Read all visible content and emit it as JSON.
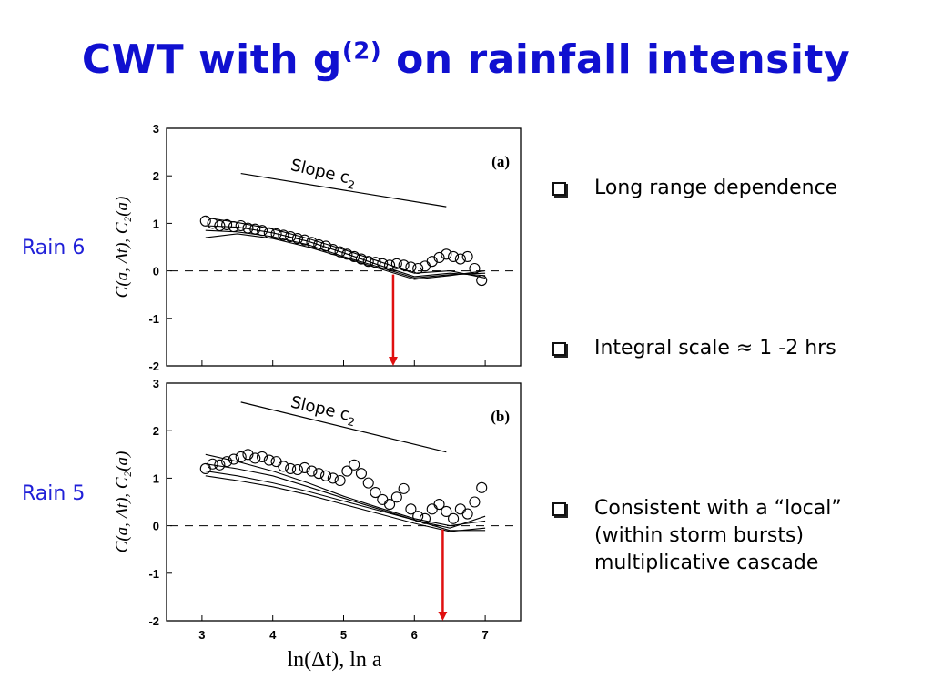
{
  "title": {
    "main": "CWT with g",
    "sup": "(2)",
    "rest": " on rainfall intensity"
  },
  "row_labels": [
    "Rain 6",
    "Rain 5"
  ],
  "bullets": [
    {
      "lines": [
        "Long range dependence"
      ]
    },
    {
      "lines": [
        "Integral scale  ≈ 1 -2 hrs"
      ]
    },
    {
      "lines": [
        "Consistent with a “local”",
        "(within storm bursts)",
        "multiplicative cascade"
      ]
    }
  ],
  "chart_data": [
    {
      "type": "scatter",
      "panel_label": "(a)",
      "xlabel": "",
      "ylabel": "C(a, Δt), C₂(a)",
      "xlim": [
        2.5,
        7.5
      ],
      "ylim": [
        -2,
        3
      ],
      "yticks": [
        "3",
        "2",
        "1",
        "0",
        "-1",
        "-2"
      ],
      "slope_label": "Slope c₂",
      "slope_line": {
        "x": [
          3.55,
          6.45
        ],
        "y": [
          2.05,
          1.35
        ]
      },
      "zero_line": 0,
      "integral_scale_x": 5.7,
      "circles": {
        "x": [
          3.05,
          3.15,
          3.25,
          3.35,
          3.45,
          3.55,
          3.65,
          3.75,
          3.85,
          3.95,
          4.05,
          4.15,
          4.25,
          4.35,
          4.45,
          4.55,
          4.65,
          4.75,
          4.85,
          4.95,
          5.05,
          5.15,
          5.25,
          5.35,
          5.45,
          5.55,
          5.65,
          5.75,
          5.85,
          5.95,
          6.05,
          6.15,
          6.25,
          6.35,
          6.45,
          6.55,
          6.65,
          6.75,
          6.85,
          6.95
        ],
        "y": [
          1.05,
          1.0,
          0.95,
          0.97,
          0.93,
          0.95,
          0.9,
          0.88,
          0.85,
          0.8,
          0.78,
          0.75,
          0.72,
          0.68,
          0.65,
          0.6,
          0.55,
          0.52,
          0.45,
          0.4,
          0.35,
          0.3,
          0.25,
          0.2,
          0.18,
          0.15,
          0.12,
          0.15,
          0.12,
          0.08,
          0.05,
          0.1,
          0.2,
          0.28,
          0.35,
          0.3,
          0.25,
          0.3,
          0.05,
          -0.2
        ]
      },
      "lines": [
        {
          "x": [
            3.05,
            3.5,
            4.0,
            4.5,
            5.0,
            5.5,
            6.0,
            6.5,
            7.0
          ],
          "y": [
            0.95,
            0.92,
            0.8,
            0.62,
            0.38,
            0.12,
            -0.12,
            -0.05,
            -0.1
          ]
        },
        {
          "x": [
            3.05,
            3.5,
            4.0,
            4.5,
            5.0,
            5.5,
            6.0,
            6.5,
            7.0
          ],
          "y": [
            0.85,
            0.82,
            0.72,
            0.55,
            0.3,
            0.08,
            -0.15,
            -0.08,
            -0.05
          ]
        },
        {
          "x": [
            3.05,
            3.5,
            4.0,
            4.5,
            5.0,
            5.5,
            6.0,
            6.5,
            7.0
          ],
          "y": [
            1.12,
            1.02,
            0.88,
            0.68,
            0.45,
            0.2,
            -0.05,
            0.0,
            -0.15
          ]
        },
        {
          "x": [
            3.05,
            3.5,
            4.0,
            4.5,
            5.0,
            5.5,
            6.0,
            6.5,
            7.0
          ],
          "y": [
            0.7,
            0.78,
            0.68,
            0.5,
            0.28,
            0.05,
            -0.18,
            -0.1,
            0.0
          ]
        }
      ]
    },
    {
      "type": "scatter",
      "panel_label": "(b)",
      "xlabel": "ln(Δt), ln a",
      "ylabel": "C(a, Δt), C₂(a)",
      "xlim": [
        2.5,
        7.5
      ],
      "ylim": [
        -2,
        3
      ],
      "xticks": [
        "3",
        "4",
        "5",
        "6",
        "7"
      ],
      "yticks": [
        "3",
        "2",
        "1",
        "0",
        "-1",
        "-2"
      ],
      "slope_label": "Slope c₂",
      "slope_line": {
        "x": [
          3.55,
          6.45
        ],
        "y": [
          2.6,
          1.55
        ]
      },
      "zero_line": 0,
      "integral_scale_x": 6.4,
      "circles": {
        "x": [
          3.05,
          3.15,
          3.25,
          3.35,
          3.45,
          3.55,
          3.65,
          3.75,
          3.85,
          3.95,
          4.05,
          4.15,
          4.25,
          4.35,
          4.45,
          4.55,
          4.65,
          4.75,
          4.85,
          4.95,
          5.05,
          5.15,
          5.25,
          5.35,
          5.45,
          5.55,
          5.65,
          5.75,
          5.85,
          5.95,
          6.05,
          6.15,
          6.25,
          6.35,
          6.45,
          6.55,
          6.65,
          6.75,
          6.85,
          6.95
        ],
        "y": [
          1.2,
          1.3,
          1.28,
          1.35,
          1.4,
          1.45,
          1.5,
          1.42,
          1.45,
          1.38,
          1.35,
          1.25,
          1.2,
          1.18,
          1.22,
          1.15,
          1.1,
          1.05,
          1.0,
          0.95,
          1.15,
          1.28,
          1.1,
          0.9,
          0.7,
          0.55,
          0.45,
          0.6,
          0.78,
          0.35,
          0.2,
          0.15,
          0.35,
          0.45,
          0.3,
          0.15,
          0.35,
          0.25,
          0.5,
          0.8
        ]
      },
      "lines": [
        {
          "x": [
            3.05,
            3.5,
            4.0,
            4.5,
            5.0,
            5.5,
            6.0,
            6.5,
            7.0
          ],
          "y": [
            1.15,
            1.05,
            0.9,
            0.72,
            0.52,
            0.32,
            0.12,
            -0.1,
            -0.1
          ]
        },
        {
          "x": [
            3.05,
            3.5,
            4.0,
            4.5,
            5.0,
            5.5,
            6.0,
            6.5,
            7.0
          ],
          "y": [
            1.05,
            0.95,
            0.82,
            0.65,
            0.45,
            0.25,
            0.05,
            -0.12,
            -0.05
          ]
        },
        {
          "x": [
            3.05,
            3.5,
            4.0,
            4.5,
            5.0,
            5.5,
            6.0,
            6.5,
            7.0
          ],
          "y": [
            1.5,
            1.35,
            1.15,
            0.9,
            0.62,
            0.38,
            0.15,
            0.0,
            0.1
          ]
        },
        {
          "x": [
            3.05,
            3.5,
            4.0,
            4.5,
            5.0,
            5.5,
            6.0,
            6.5,
            7.0
          ],
          "y": [
            1.3,
            1.2,
            1.05,
            0.82,
            0.58,
            0.35,
            0.12,
            -0.05,
            0.2
          ]
        }
      ]
    }
  ]
}
